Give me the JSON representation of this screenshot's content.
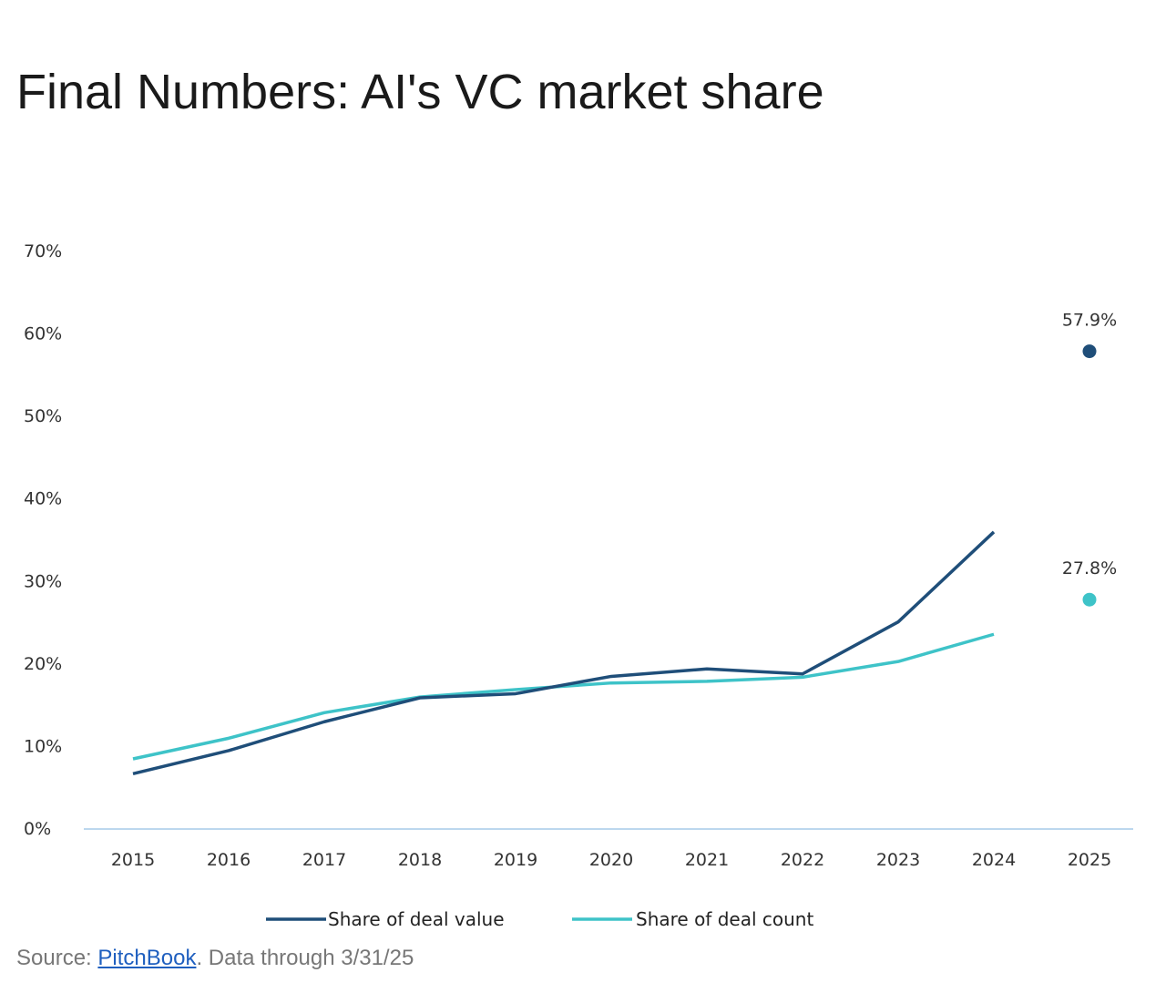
{
  "title": "Final Numbers: AI's VC market share",
  "source": {
    "prefix": "Source: ",
    "link_text": "PitchBook",
    "suffix": ". Data through 3/31/25"
  },
  "colors": {
    "deal_value": "#1f4e79",
    "deal_count": "#3ec3c8",
    "axis": "#bcd7ee",
    "link": "#1f5fbf"
  },
  "chart_data": {
    "type": "line",
    "title": "",
    "xlabel": "",
    "ylabel": "",
    "categories": [
      "2015",
      "2016",
      "2017",
      "2018",
      "2019",
      "2020",
      "2021",
      "2022",
      "2023",
      "2024",
      "2025"
    ],
    "ylim": [
      0,
      70
    ],
    "yticks": [
      "0%",
      "10%",
      "20%",
      "30%",
      "40%",
      "50%",
      "60%",
      "70%"
    ],
    "grid": false,
    "legend_position": "bottom",
    "series": [
      {
        "name": "Share of deal value",
        "color": "#1f4e79",
        "values": [
          6.7,
          9.5,
          13.0,
          15.9,
          16.4,
          18.5,
          19.4,
          18.8,
          25.1,
          36.0,
          null
        ],
        "point": {
          "category": "2025",
          "value": 57.9,
          "label": "57.9%"
        }
      },
      {
        "name": "Share of deal count",
        "color": "#3ec3c8",
        "values": [
          8.5,
          11.0,
          14.1,
          16.0,
          16.9,
          17.7,
          17.9,
          18.4,
          20.3,
          23.6,
          null
        ],
        "point": {
          "category": "2025",
          "value": 27.8,
          "label": "27.8%"
        }
      }
    ]
  }
}
